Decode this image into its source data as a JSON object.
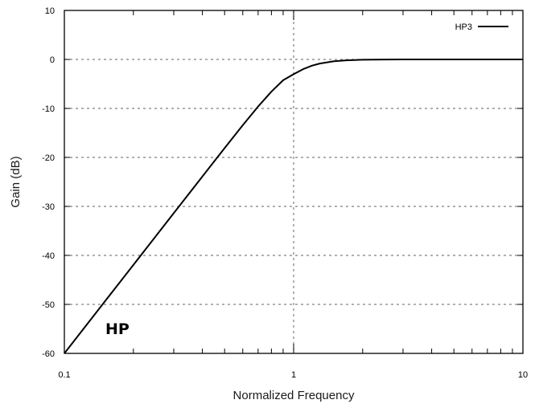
{
  "chart_data": {
    "type": "line",
    "xscale": "log",
    "xlim": [
      0.1,
      10
    ],
    "ylim": [
      -60,
      10
    ],
    "xlabel": "Normalized Frequency",
    "ylabel": "Gain (dB)",
    "x_ticks": [
      "0.1",
      "1",
      "10"
    ],
    "y_ticks": [
      "10",
      "0",
      "-10",
      "-20",
      "-30",
      "-40",
      "-50",
      "-60"
    ],
    "grid": "dashed",
    "legend_position": "top-right",
    "annotation": "HP",
    "series": [
      {
        "name": "HP3",
        "color": "#000000",
        "x": [
          0.1,
          0.12,
          0.15,
          0.2,
          0.25,
          0.3,
          0.4,
          0.5,
          0.6,
          0.7,
          0.8,
          0.9,
          1.0,
          1.1,
          1.2,
          1.3,
          1.5,
          1.7,
          2.0,
          2.5,
          3.0,
          4.0,
          5.0,
          7.0,
          10.0
        ],
        "y": [
          -60.0,
          -55.25,
          -49.43,
          -41.94,
          -36.13,
          -31.38,
          -23.89,
          -18.1,
          -13.42,
          -9.61,
          -6.57,
          -4.24,
          -3.01,
          -1.98,
          -1.28,
          -0.84,
          -0.37,
          -0.18,
          -0.07,
          -0.02,
          -0.01,
          0.0,
          0.0,
          0.0,
          0.0
        ]
      }
    ]
  }
}
